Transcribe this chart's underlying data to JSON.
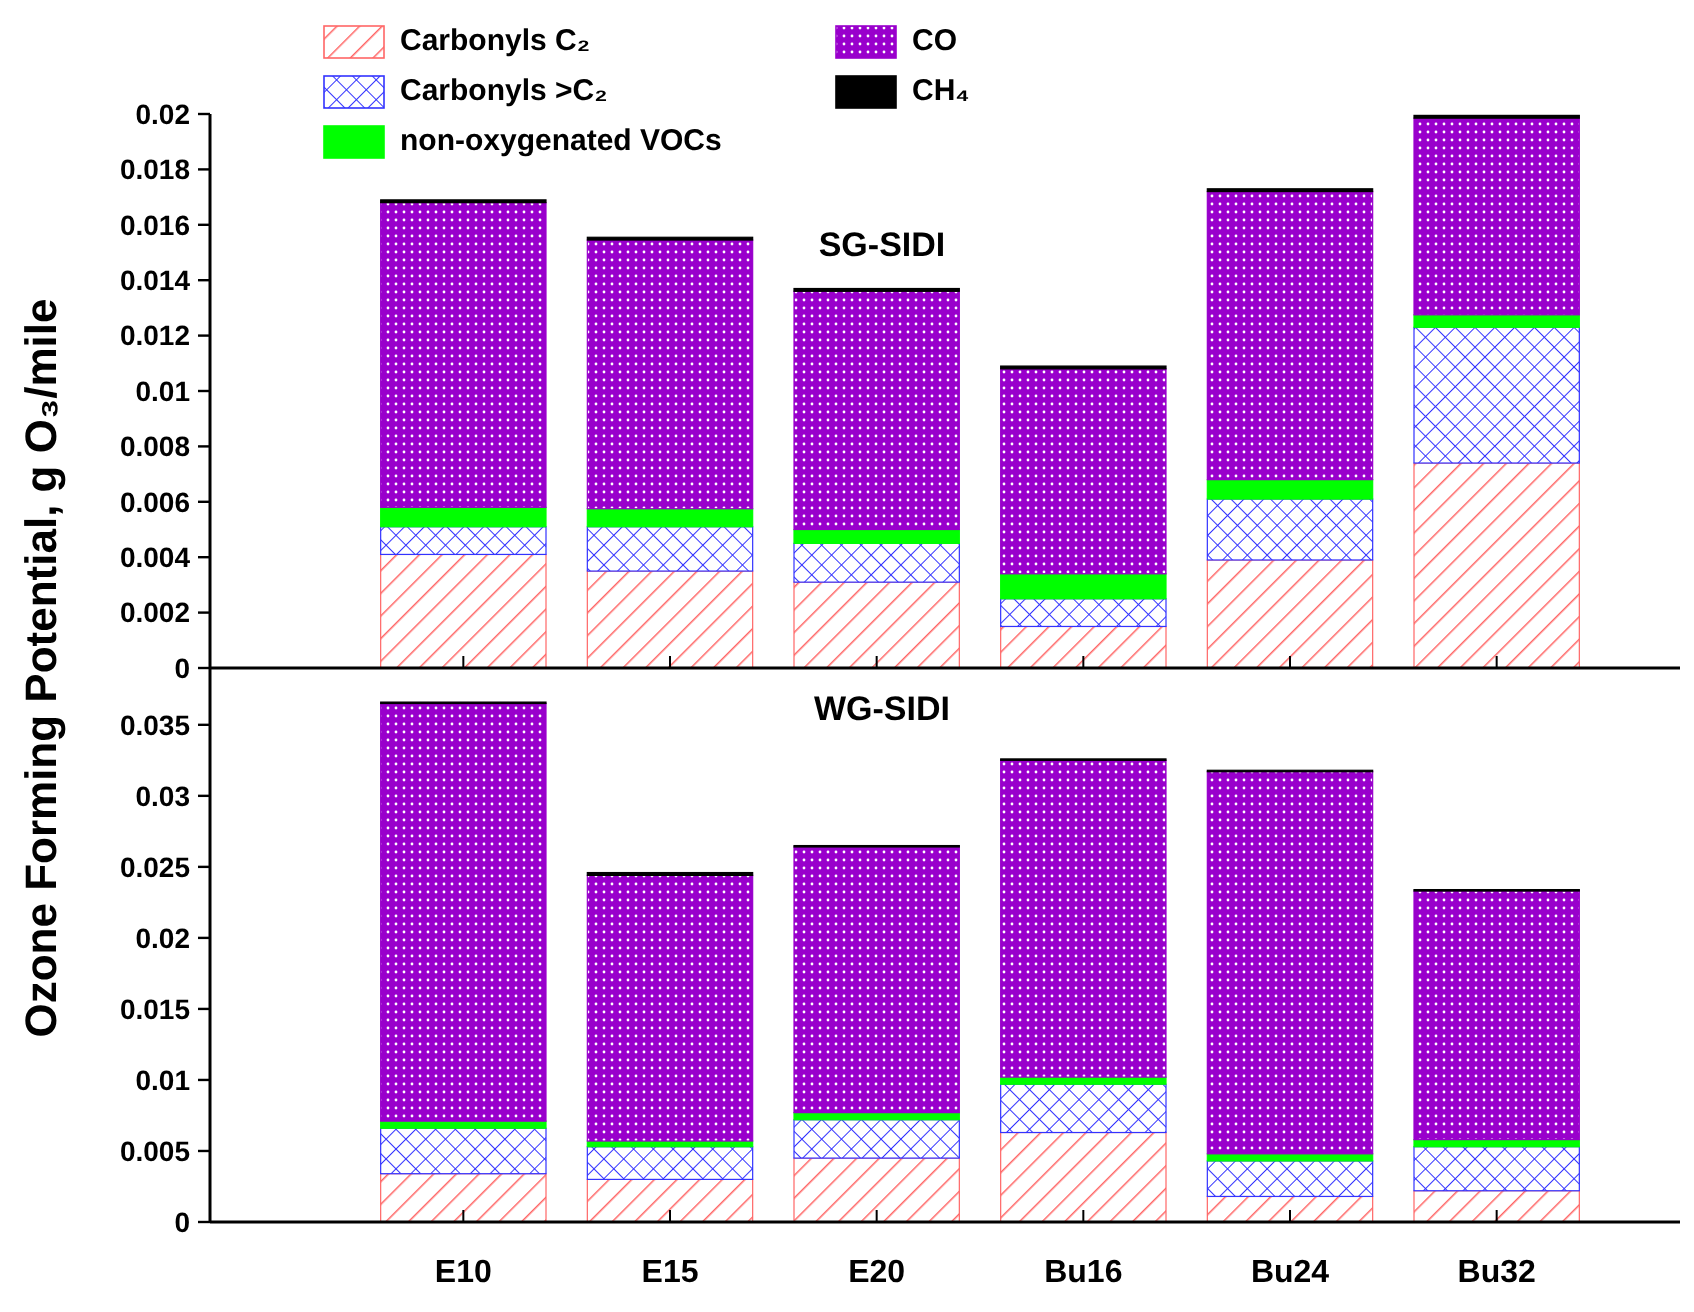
{
  "chart_data": [
    {
      "type": "bar",
      "title": "SG-SIDI",
      "ylabel": "Ozone Forming Potential, g O₃/mile",
      "categories": [
        "E10",
        "E15",
        "E20",
        "Bu16",
        "Bu24",
        "Bu32"
      ],
      "stacked": true,
      "ylim": [
        0,
        0.02
      ],
      "yticks": [
        0,
        0.002,
        0.004,
        0.006,
        0.008,
        0.01,
        0.012,
        0.014,
        0.016,
        0.018,
        0.02
      ],
      "tick_labels": "y",
      "legend": "top left",
      "series": [
        {
          "name": "Carbonyls C₂",
          "color": "#ff6666",
          "values": [
            0.0041,
            0.0035,
            0.0031,
            0.0015,
            0.0039,
            0.0074
          ]
        },
        {
          "name": "Carbonyls >C₂",
          "color": "#3333ff",
          "values": [
            0.001,
            0.0016,
            0.0014,
            0.001,
            0.0022,
            0.0049
          ]
        },
        {
          "name": "non-oxygenated VOCs",
          "color": "#00ff00",
          "values": [
            0.0007,
            0.00065,
            0.0005,
            0.0009,
            0.0007,
            0.00045
          ]
        },
        {
          "name": "CO",
          "color": "#9900cc",
          "values": [
            0.011,
            0.0097,
            0.0086,
            0.0074,
            0.0104,
            0.0071
          ]
        },
        {
          "name": "CH₄",
          "color": "#000000",
          "values": [
            0.0001,
            0.0001,
            0.0001,
            0.0001,
            0.0001,
            0.0001
          ]
        }
      ]
    },
    {
      "type": "bar",
      "title": "WG-SIDI",
      "categories": [
        "E10",
        "E15",
        "E20",
        "Bu16",
        "Bu24",
        "Bu32"
      ],
      "stacked": true,
      "ylim": [
        0,
        0.039
      ],
      "yticks": [
        0,
        0.005,
        0.01,
        0.015,
        0.02,
        0.025,
        0.03,
        0.035
      ],
      "series": [
        {
          "color": "#ff6666",
          "values": [
            0.0034,
            0.003,
            0.0045,
            0.0063,
            0.0018,
            0.0022
          ]
        },
        {
          "color": "#3333ff",
          "values": [
            0.0032,
            0.0023,
            0.0027,
            0.0034,
            0.0025,
            0.0031
          ]
        },
        {
          "color": "#00ff00",
          "values": [
            0.0005,
            0.0004,
            0.0005,
            0.0005,
            0.0005,
            0.0005
          ]
        },
        {
          "color": "#9900cc",
          "values": [
            0.0294,
            0.0187,
            0.0187,
            0.0223,
            0.0269,
            0.0175
          ]
        },
        {
          "color": "#000000",
          "values": [
            0.0001,
            0.0002,
            0.0001,
            0.0001,
            0.0001,
            0.0001
          ]
        }
      ]
    }
  ]
}
